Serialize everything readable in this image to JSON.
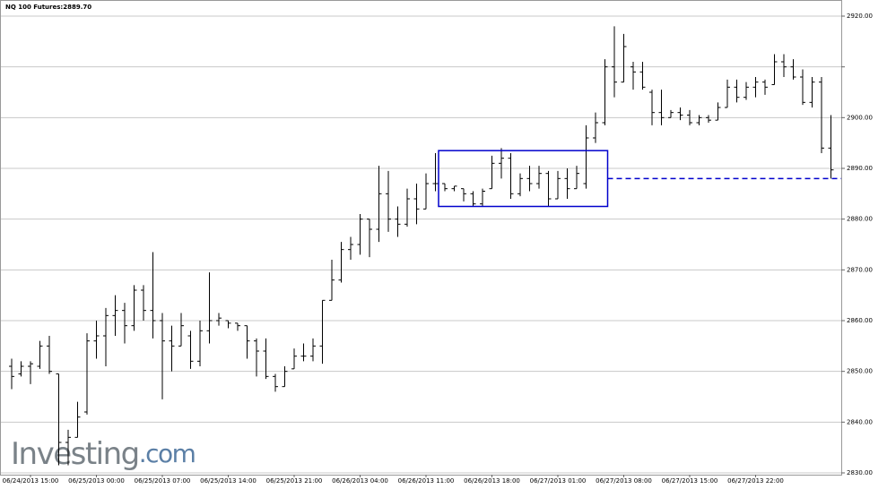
{
  "chart_data": {
    "type": "ohlc",
    "title": "NQ 100 Futures:2889.70",
    "watermark": [
      "Investing",
      ".com"
    ],
    "categories": [
      null,
      null,
      "06/24/2013 15:00",
      null,
      null,
      null,
      null,
      null,
      null,
      "06/25/2013 00:00",
      null,
      null,
      null,
      null,
      null,
      null,
      "06/25/2013 07:00",
      null,
      null,
      null,
      null,
      null,
      null,
      "06/25/2013 14:00",
      null,
      null,
      null,
      null,
      null,
      null,
      "06/25/2013 21:00",
      null,
      null,
      null,
      null,
      null,
      null,
      "06/26/2013 04:00",
      null,
      null,
      null,
      null,
      null,
      null,
      "06/26/2013 11:00",
      null,
      null,
      null,
      null,
      null,
      null,
      "06/26/2013 18:00",
      null,
      null,
      null,
      null,
      null,
      null,
      "06/27/2013 01:00",
      null,
      null,
      null,
      null,
      null,
      null,
      "06/27/2013 08:00",
      null,
      null,
      null,
      null,
      null,
      null,
      "06/27/2013 15:00",
      null,
      null,
      null,
      null,
      null,
      null,
      "06/27/2013 22:00",
      null,
      null,
      null,
      null,
      null,
      null,
      null,
      null
    ],
    "open": [
      2851,
      2849.5,
      2851,
      2851,
      2855,
      2849.5,
      2836,
      2837,
      2842,
      2856,
      2857,
      2861,
      2862,
      2859,
      2866,
      2862,
      2860,
      2856,
      2855,
      2857,
      2852,
      2858,
      2860,
      2860,
      2859.5,
      2859,
      2856,
      2854,
      2849,
      2847,
      2850.5,
      2853,
      2853,
      2855,
      2864,
      2868,
      2874,
      2875,
      2880,
      2878,
      2885,
      2880,
      2879,
      2884,
      2882,
      2887,
      2887,
      2886,
      2886,
      2885,
      2883,
      2886,
      2891,
      2892,
      2885,
      2888,
      2887,
      2889,
      2884,
      2888,
      2886,
      2887,
      2896,
      2899,
      2910,
      2907,
      2910,
      2909,
      2905,
      2901,
      2900,
      2901,
      2900.5,
      2899,
      2900,
      2899.5,
      2902,
      2906,
      2904,
      2906,
      2907,
      2906.5,
      2911,
      2910,
      2908,
      2903,
      2907,
      2894
    ],
    "high": [
      2852.5,
      2852,
      2852,
      2856,
      2857,
      2849.5,
      2838.5,
      2844,
      2857.5,
      2860,
      2862.5,
      2865,
      2863.5,
      2867,
      2867,
      2873.5,
      2861.5,
      2859,
      2861.5,
      2858,
      2860,
      2869.5,
      2861.5,
      2860,
      2859.5,
      2859,
      2856.5,
      2856.5,
      2849.5,
      2851,
      2854.5,
      2855.5,
      2856.5,
      2864,
      2872,
      2875.5,
      2876.5,
      2881,
      2880,
      2890.5,
      2889.5,
      2882.5,
      2886,
      2887,
      2889,
      2893,
      2887,
      2886.5,
      2886,
      2885.5,
      2886,
      2892.5,
      2894,
      2893,
      2889,
      2890.5,
      2890.5,
      2889.5,
      2889.5,
      2890,
      2890.5,
      2898.5,
      2901,
      2911.5,
      2918,
      2916.5,
      2911,
      2911,
      2905.5,
      2905.5,
      2901.5,
      2902,
      2901.5,
      2900.5,
      2900.5,
      2903,
      2907.5,
      2907.5,
      2907,
      2908,
      2907.5,
      2912.5,
      2912.5,
      2911.5,
      2909.5,
      2908,
      2908,
      2900.5
    ],
    "low": [
      2846.5,
      2849,
      2847.5,
      2850.5,
      2849.5,
      2831.5,
      2831.5,
      2837,
      2841.5,
      2852.5,
      2851,
      2857,
      2855.5,
      2858,
      2860,
      2856.5,
      2844.5,
      2850,
      2855,
      2850.5,
      2851,
      2855.5,
      2859,
      2858.5,
      2858,
      2852.5,
      2849,
      2848.5,
      2846,
      2847,
      2850.5,
      2852,
      2852,
      2851.5,
      2864,
      2867.5,
      2872,
      2873,
      2872.5,
      2875.5,
      2877.5,
      2876.5,
      2878.5,
      2879,
      2882,
      2885.5,
      2885.5,
      2885.5,
      2883.5,
      2882.5,
      2882.5,
      2886,
      2888,
      2884,
      2884.5,
      2885.5,
      2886,
      2882.5,
      2884,
      2884,
      2886,
      2886,
      2895,
      2898.5,
      2904,
      2907,
      2905.5,
      2905.5,
      2898.5,
      2898.5,
      2900,
      2899.5,
      2898.5,
      2898.5,
      2899,
      2899.5,
      2902,
      2903,
      2903.5,
      2904,
      2904.5,
      2906.5,
      2908,
      2907.5,
      2902.5,
      2902,
      2893,
      2888
    ],
    "close": [
      2849,
      2851,
      2851.5,
      2855,
      2850,
      2836,
      2837,
      2841,
      2856,
      2857,
      2861,
      2862,
      2859,
      2866,
      2862,
      2860,
      2856,
      2855,
      2859,
      2852,
      2858,
      2860,
      2860.5,
      2859.5,
      2859,
      2856,
      2854,
      2849,
      2847,
      2850,
      2853,
      2853,
      2855,
      2864,
      2868,
      2874,
      2875,
      2880,
      2878,
      2885,
      2880,
      2879,
      2884,
      2882,
      2887,
      2887,
      2886,
      2886.5,
      2885,
      2883,
      2885.5,
      2891,
      2892,
      2885,
      2888,
      2887,
      2889,
      2884,
      2888,
      2886,
      2889,
      2896,
      2899,
      2910,
      2907,
      2914,
      2909,
      2906,
      2901,
      2900,
      2901,
      2900.5,
      2899,
      2900,
      2899.5,
      2902,
      2906,
      2904,
      2906,
      2907,
      2906,
      2911,
      2910,
      2908,
      2903,
      2907,
      2894,
      2889.7
    ],
    "color": "#000000",
    "ylim": [
      2829.5,
      2922
    ],
    "yticks": [
      {
        "value": 2830,
        "label": "2830.00"
      },
      {
        "value": 2840,
        "label": "2840.00"
      },
      {
        "value": 2850,
        "label": "2850.00"
      },
      {
        "value": 2860,
        "label": "2860.00"
      },
      {
        "value": 2870,
        "label": "2870.00"
      },
      {
        "value": 2880,
        "label": "2880.00"
      },
      {
        "value": 2890,
        "label": "2890.00"
      },
      {
        "value": 2900,
        "label": "2900.00"
      },
      {
        "value": 2910,
        "label": null
      },
      {
        "value": 2920,
        "label": "2920.00"
      }
    ],
    "grid": true,
    "box": {
      "from": 46,
      "to": 63,
      "ylim": [
        2882.5,
        2893.5
      ],
      "color": "#0000cc"
    },
    "hline": {
      "value": 2888,
      "from": 63,
      "color": "#0000cc"
    }
  }
}
